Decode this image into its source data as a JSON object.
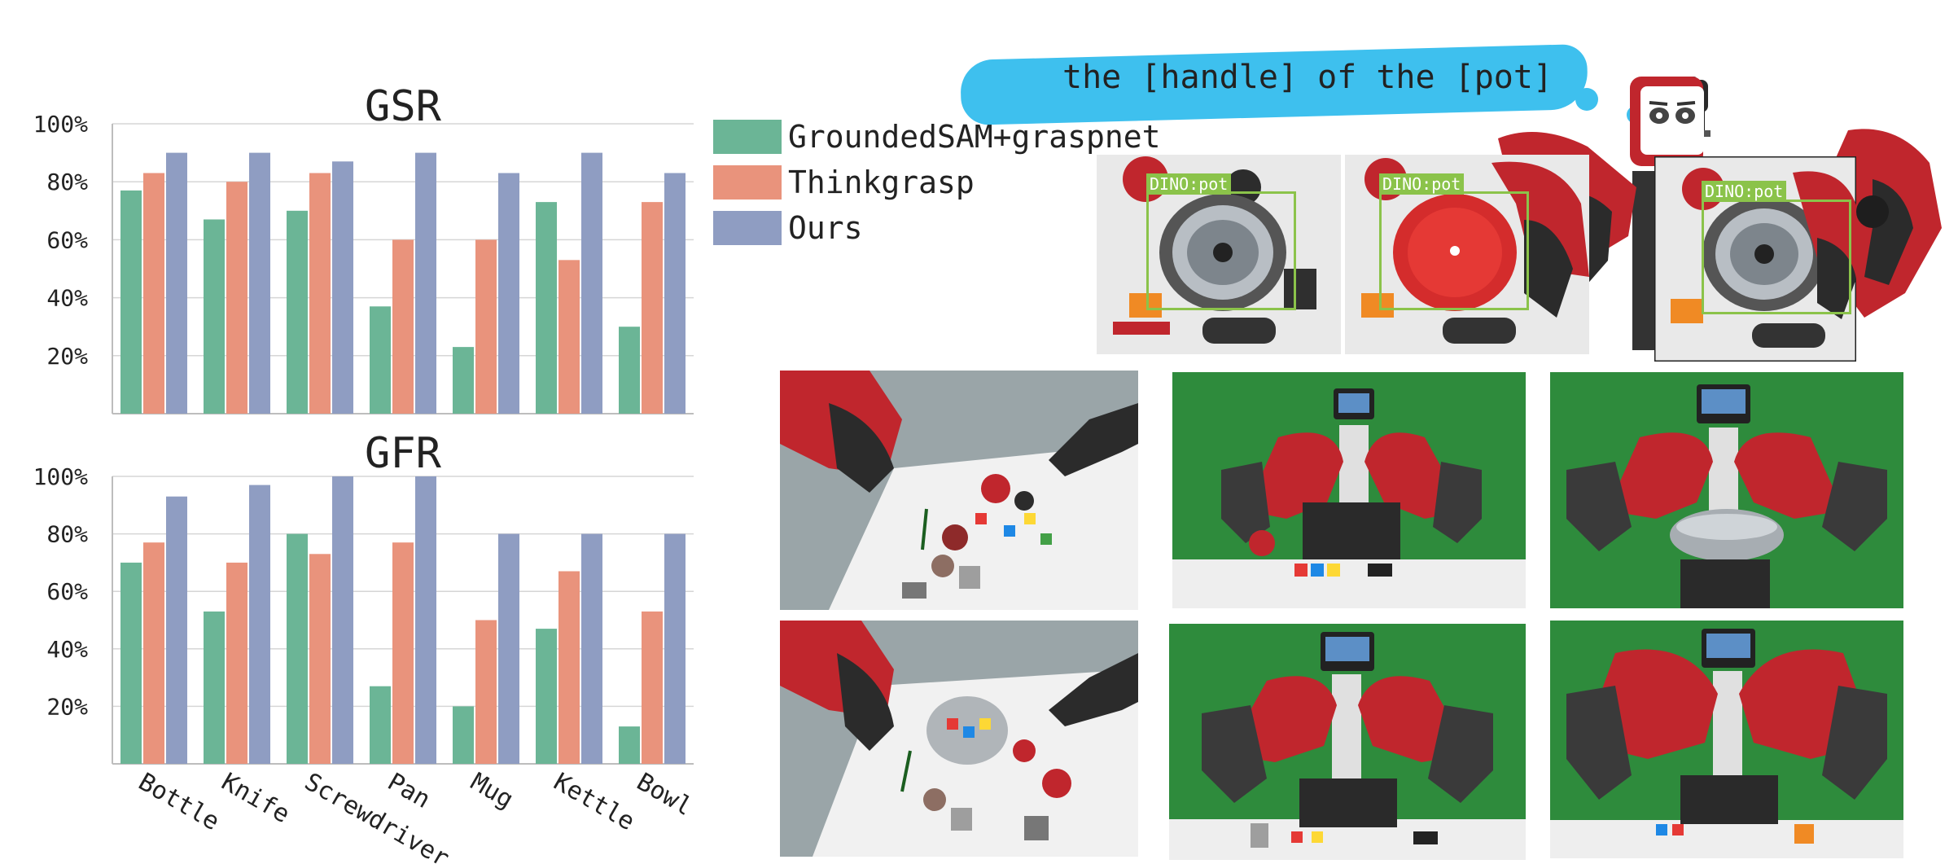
{
  "chart_data": [
    {
      "type": "bar",
      "title": "GSR",
      "categories": [
        "Bottle",
        "Knife",
        "Screwdriver",
        "Pan",
        "Mug",
        "Kettle",
        "Bowl"
      ],
      "series": [
        {
          "name": "GroundedSAM+graspnet",
          "color": "#6bb596",
          "values": [
            77,
            67,
            70,
            37,
            23,
            73,
            30
          ]
        },
        {
          "name": "Thinkgrasp",
          "color": "#e9937c",
          "values": [
            83,
            80,
            83,
            60,
            60,
            53,
            73
          ]
        },
        {
          "name": "Ours",
          "color": "#8f9dc2",
          "values": [
            90,
            90,
            87,
            90,
            83,
            90,
            83
          ]
        }
      ],
      "yticks": [
        "20%",
        "40%",
        "60%",
        "80%",
        "100%"
      ],
      "ylim": [
        0,
        100
      ],
      "grid": true
    },
    {
      "type": "bar",
      "title": "GFR",
      "categories": [
        "Bottle",
        "Knife",
        "Screwdriver",
        "Pan",
        "Mug",
        "Kettle",
        "Bowl"
      ],
      "series": [
        {
          "name": "GroundedSAM+graspnet",
          "color": "#6bb596",
          "values": [
            70,
            53,
            80,
            27,
            20,
            47,
            13
          ]
        },
        {
          "name": "Thinkgrasp",
          "color": "#e9937c",
          "values": [
            77,
            70,
            73,
            77,
            50,
            67,
            53
          ]
        },
        {
          "name": "Ours",
          "color": "#8f9dc2",
          "values": [
            93,
            97,
            100,
            100,
            80,
            80,
            80
          ]
        }
      ],
      "yticks": [
        "20%",
        "40%",
        "60%",
        "80%",
        "100%"
      ],
      "ylim": [
        0,
        100
      ],
      "grid": true
    }
  ],
  "legend": {
    "items": [
      {
        "label": "GroundedSAM+graspnet",
        "color": "#6bb596"
      },
      {
        "label": "Thinkgrasp",
        "color": "#e9937c"
      },
      {
        "label": "Ours",
        "color": "#8f9dc2"
      }
    ]
  },
  "illustration": {
    "speech_text": "the [handle] of the [pot]",
    "detection_labels": [
      "DINO:pot",
      "DINO:pot",
      "DINO:pot"
    ],
    "photo_icons": [
      "tabletop-objects-photo",
      "robot-grasping-photo"
    ]
  },
  "colors": {
    "speech_bubble": "#3ec0ee",
    "detection": "#8bc34a",
    "green_screen": "#2e8b3c",
    "robot_red": "#c0262d"
  }
}
